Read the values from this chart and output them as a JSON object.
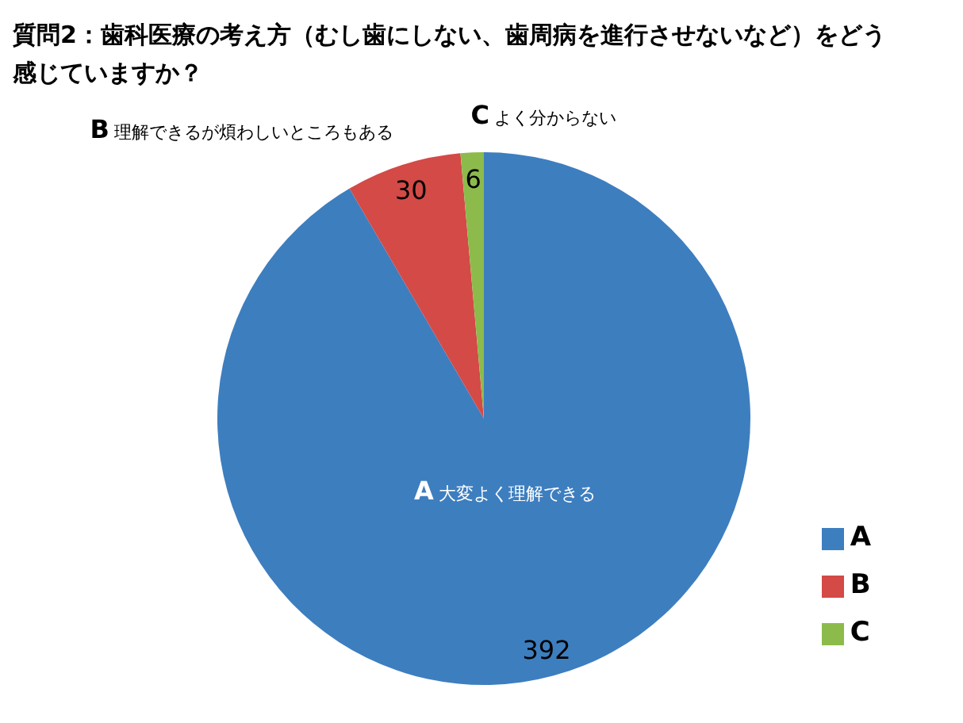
{
  "chart_data": {
    "type": "pie",
    "title": "質問2：歯科医療の考え方（むし歯にしない、歯周病を進行させないなど）をどう感じていますか？",
    "categories": [
      "A",
      "B",
      "C"
    ],
    "values": [
      392,
      30,
      6
    ],
    "colors": [
      "#3d7ebf",
      "#d34a47",
      "#8cbb4c"
    ],
    "data_labels": true,
    "legend": "bottom right",
    "annotations": [
      "A 大変よく理解できる",
      "B 理解できるが煩わしいところもある",
      "C よく分からない"
    ]
  }
}
